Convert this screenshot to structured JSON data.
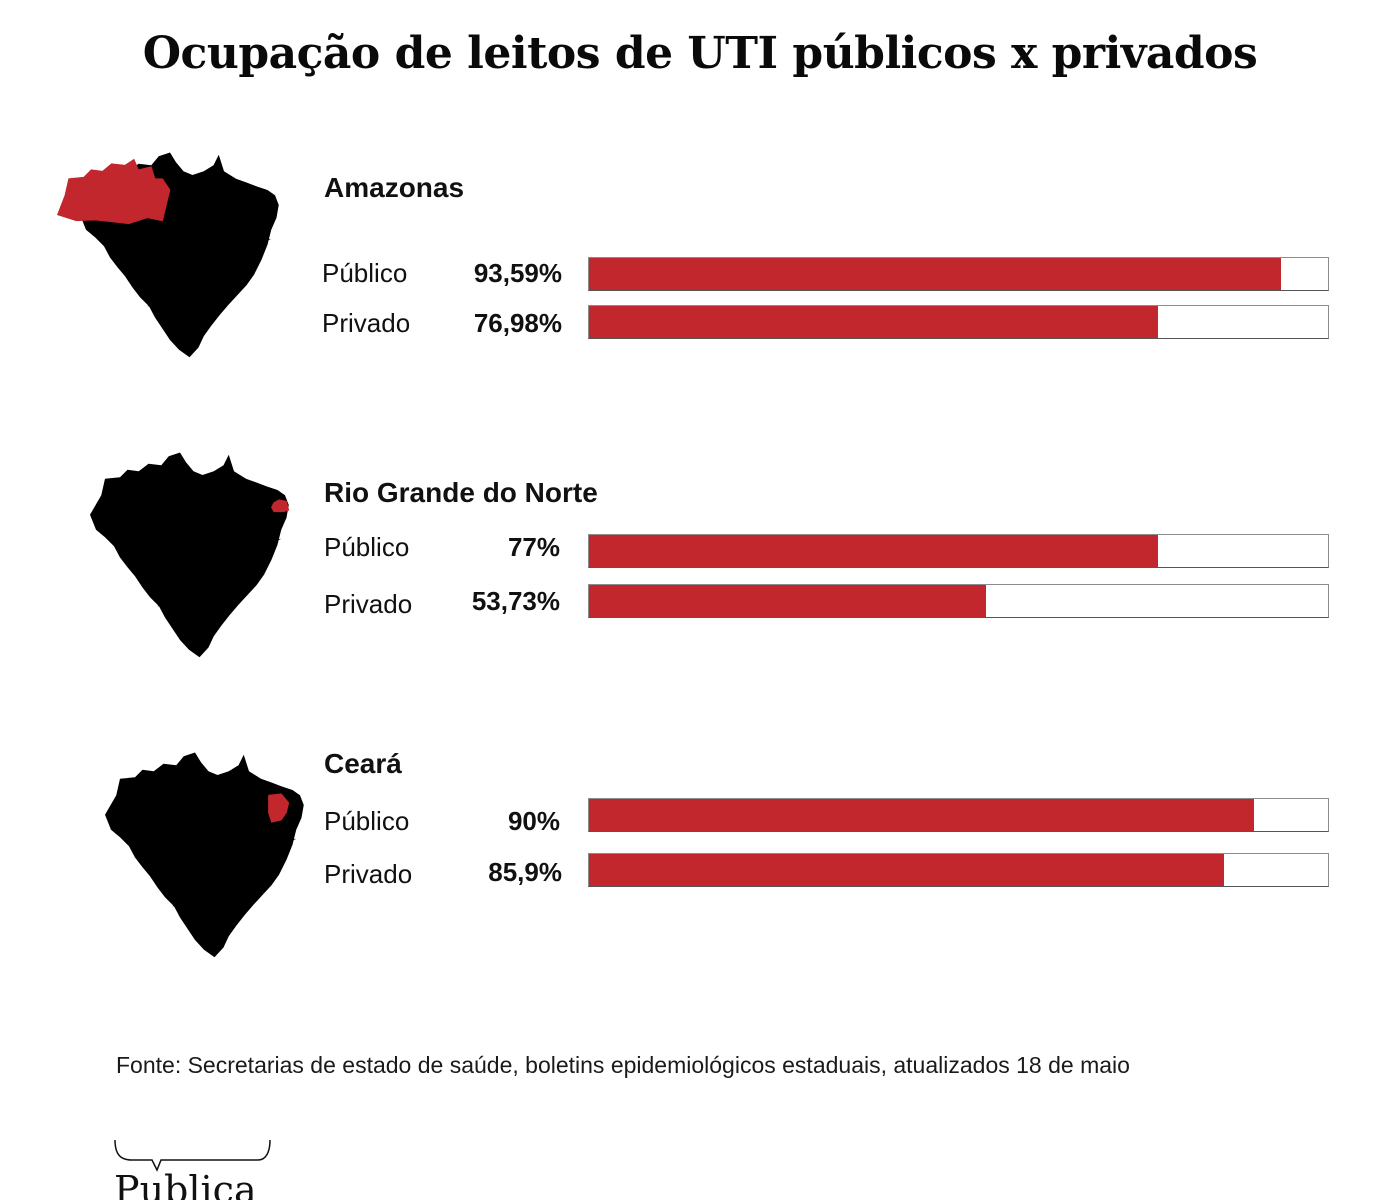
{
  "title": "Ocupação de leitos de UTI públicos x privados",
  "colors": {
    "bar_fill": "#c1272d",
    "bar_border": "#8c8c8c",
    "map_stroke": "#7c9ab3",
    "highlight": "#c1272d"
  },
  "chart_data": {
    "type": "bar",
    "orientation": "horizontal",
    "title": "Ocupação de leitos de UTI públicos x privados",
    "xlim": [
      0,
      100
    ],
    "unit": "%",
    "groups": [
      {
        "state": "Amazonas",
        "map_icon": "brazil-map-amazonas-highlighted",
        "rows": [
          {
            "label": "Público",
            "value": 93.59,
            "display": "93,59%"
          },
          {
            "label": "Privado",
            "value": 76.98,
            "display": "76,98%"
          }
        ]
      },
      {
        "state": "Rio Grande do Norte",
        "map_icon": "brazil-map-rio-grande-do-norte-highlighted",
        "rows": [
          {
            "label": "Público",
            "value": 77,
            "display": "77%"
          },
          {
            "label": "Privado",
            "value": 53.73,
            "display": "53,73%"
          }
        ]
      },
      {
        "state": "Ceará",
        "map_icon": "brazil-map-ceara-highlighted",
        "rows": [
          {
            "label": "Público",
            "value": 90,
            "display": "90%"
          },
          {
            "label": "Privado",
            "value": 85.9,
            "display": "85,9%"
          }
        ]
      }
    ]
  },
  "source": "Fonte: Secretarias de estado de saúde, boletins epidemiológicos estaduais, atualizados 18 de maio",
  "logo": {
    "text": "Publica",
    "icon": "speech-bracket-icon"
  }
}
